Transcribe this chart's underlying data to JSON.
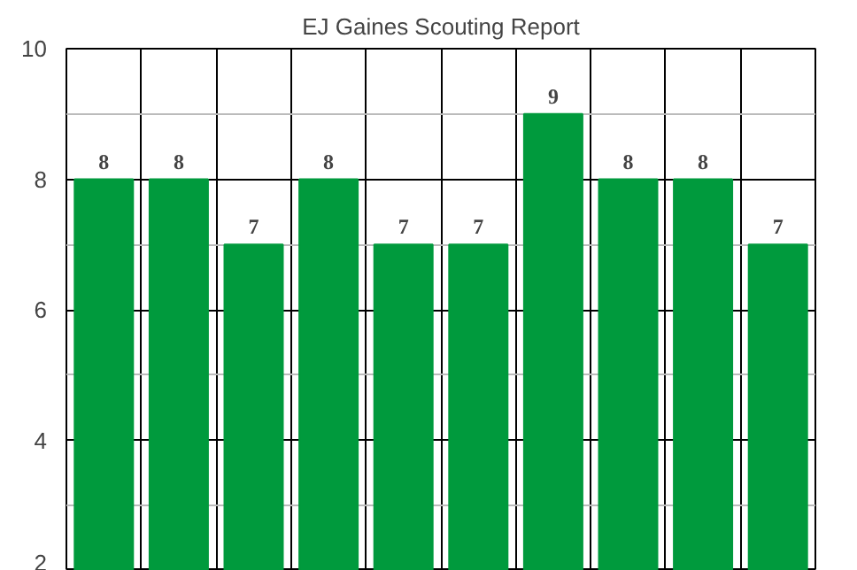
{
  "chart_data": {
    "type": "bar",
    "title": "EJ Gaines Scouting Report",
    "categories": [
      null,
      null,
      null,
      null,
      null,
      null,
      null,
      null,
      null,
      null
    ],
    "values": [
      8,
      8,
      7,
      8,
      7,
      7,
      9,
      8,
      8,
      7
    ],
    "color": "#009a3d",
    "ylim": [
      2,
      10
    ],
    "yticks": [
      2,
      4,
      6,
      8,
      10
    ],
    "grid": true,
    "data_labels": true,
    "tick_labels": "y"
  }
}
